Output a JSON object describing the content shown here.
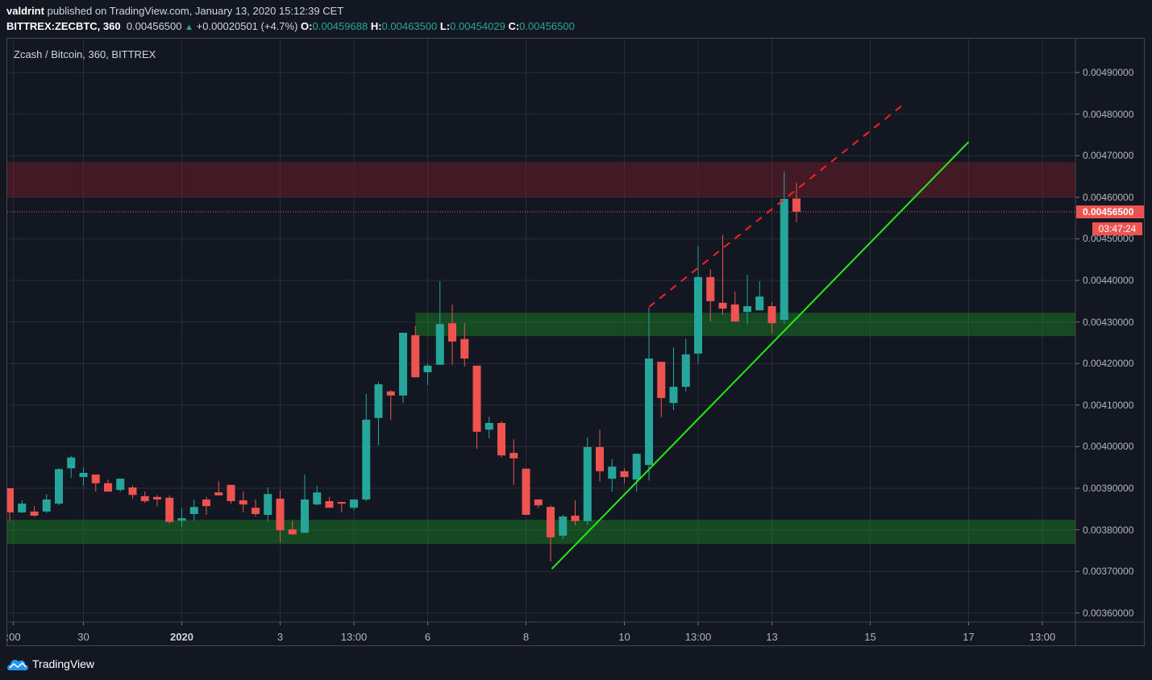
{
  "header": {
    "author": "valdrint",
    "published_text": "published on TradingView.com, January 13, 2020 15:12:39 CET",
    "symbol": "BITTREX:ZECBTC, 360",
    "last": "0.00456500",
    "change": "+0.00020501 (+4.7%)",
    "o_label": "O:",
    "o": "0.00459688",
    "h_label": "H:",
    "h": "0.00463500",
    "l_label": "L:",
    "l": "0.00454029",
    "c_label": "C:",
    "c": "0.00456500",
    "arrow_icon": "triangle-up-icon"
  },
  "legend": "Zcash / Bitcoin, 360, BITTREX",
  "price_tag": "0.00456500",
  "countdown": "03:47:24",
  "brand": "TradingView",
  "colors": {
    "up": "#26a69a",
    "down": "#ef5350",
    "background": "#131722",
    "grid": "#2a2e39",
    "resistance_zone": "#4a1c22",
    "support_zone": "#1e5a28",
    "trendline": "#22ee11",
    "dashed_line": "#ff2020"
  },
  "chart_data": {
    "type": "candlestick",
    "title": "Zcash / Bitcoin, 360, BITTREX",
    "ylim": [
      0.00355,
      0.00497
    ],
    "grid": true,
    "y_ticks": [
      "0.00490000",
      "0.00480000",
      "0.00470000",
      "0.00460000",
      "0.00450000",
      "0.00440000",
      "0.00430000",
      "0.00420000",
      "0.00410000",
      "0.00400000",
      "0.00390000",
      "0.00380000",
      "0.00370000",
      "0.00360000"
    ],
    "x_ticks": [
      {
        "label": ":00",
        "bar": 0.3
      },
      {
        "label": "30",
        "bar": 6
      },
      {
        "label": "2020",
        "bar": 14,
        "bold": true
      },
      {
        "label": "3",
        "bar": 22
      },
      {
        "label": "13:00",
        "bar": 28
      },
      {
        "label": "6",
        "bar": 34
      },
      {
        "label": "8",
        "bar": 42
      },
      {
        "label": "10",
        "bar": 50
      },
      {
        "label": "13:00",
        "bar": 56
      },
      {
        "label": "13",
        "bar": 62
      },
      {
        "label": "15",
        "bar": 70
      },
      {
        "label": "17",
        "bar": 78
      },
      {
        "label": "13:00",
        "bar": 84
      }
    ],
    "candles_ohlc": [
      [
        0.0039,
        0.0039,
        0.003822,
        0.003842
      ],
      [
        0.003842,
        0.003871,
        0.00384,
        0.003863
      ],
      [
        0.003844,
        0.003857,
        0.003832,
        0.003834
      ],
      [
        0.003844,
        0.003886,
        0.00384,
        0.003873
      ],
      [
        0.003863,
        0.003948,
        0.003859,
        0.003946
      ],
      [
        0.003948,
        0.003978,
        0.003925,
        0.003974
      ],
      [
        0.003927,
        0.00395,
        0.003906,
        0.003937
      ],
      [
        0.003933,
        0.003933,
        0.003892,
        0.003912
      ],
      [
        0.003912,
        0.003921,
        0.003892,
        0.003892
      ],
      [
        0.003896,
        0.003923,
        0.003892,
        0.003923
      ],
      [
        0.003902,
        0.003906,
        0.003875,
        0.003884
      ],
      [
        0.003881,
        0.003892,
        0.003865,
        0.003869
      ],
      [
        0.003879,
        0.003883,
        0.003857,
        0.003873
      ],
      [
        0.003877,
        0.003883,
        0.003815,
        0.003819
      ],
      [
        0.003822,
        0.003852,
        0.003807,
        0.003828
      ],
      [
        0.003838,
        0.003873,
        0.003822,
        0.003855
      ],
      [
        0.003873,
        0.003879,
        0.003836,
        0.003857
      ],
      [
        0.00389,
        0.003917,
        0.003883,
        0.003883
      ],
      [
        0.003908,
        0.003908,
        0.003863,
        0.003869
      ],
      [
        0.003871,
        0.003892,
        0.003842,
        0.003861
      ],
      [
        0.003853,
        0.003873,
        0.003832,
        0.003838
      ],
      [
        0.003836,
        0.003902,
        0.00382,
        0.003886
      ],
      [
        0.003875,
        0.003896,
        0.00377,
        0.003799
      ],
      [
        0.003801,
        0.003822,
        0.003789,
        0.003789
      ],
      [
        0.003793,
        0.003933,
        0.003793,
        0.003873
      ],
      [
        0.003861,
        0.003906,
        0.003859,
        0.00389
      ],
      [
        0.003869,
        0.003879,
        0.003853,
        0.003853
      ],
      [
        0.003867,
        0.003867,
        0.003842,
        0.003863
      ],
      [
        0.003853,
        0.003873,
        0.003846,
        0.003873
      ],
      [
        0.003873,
        0.004127,
        0.003869,
        0.004065
      ],
      [
        0.004069,
        0.004156,
        0.004003,
        0.00415
      ],
      [
        0.004133,
        0.004136,
        0.004065,
        0.004123
      ],
      [
        0.004123,
        0.004274,
        0.004105,
        0.004274
      ],
      [
        0.004268,
        0.00429,
        0.004166,
        0.004167
      ],
      [
        0.004179,
        0.0042,
        0.004148,
        0.004195
      ],
      [
        0.004197,
        0.004398,
        0.004197,
        0.004295
      ],
      [
        0.004297,
        0.004342,
        0.004197,
        0.004253
      ],
      [
        0.004259,
        0.004297,
        0.004193,
        0.004212
      ],
      [
        0.004195,
        0.004195,
        0.003995,
        0.004036
      ],
      [
        0.004041,
        0.004072,
        0.00402,
        0.004057
      ],
      [
        0.004057,
        0.004061,
        0.003974,
        0.003979
      ],
      [
        0.003985,
        0.004018,
        0.003908,
        0.003972
      ],
      [
        0.003947,
        0.003947,
        0.003836,
        0.003836
      ],
      [
        0.003873,
        0.003873,
        0.003853,
        0.003859
      ],
      [
        0.003855,
        0.003859,
        0.003724,
        0.003782
      ],
      [
        0.003786,
        0.003836,
        0.003778,
        0.003832
      ],
      [
        0.003834,
        0.003871,
        0.003811,
        0.003821
      ],
      [
        0.003821,
        0.004022,
        0.003811,
        0.003999
      ],
      [
        0.003999,
        0.004041,
        0.003916,
        0.003941
      ],
      [
        0.003923,
        0.00397,
        0.003892,
        0.003952
      ],
      [
        0.003941,
        0.003948,
        0.003912,
        0.003927
      ],
      [
        0.003921,
        0.003983,
        0.003892,
        0.003983
      ],
      [
        0.003956,
        0.004334,
        0.003919,
        0.004212
      ],
      [
        0.004204,
        0.004204,
        0.004071,
        0.004117
      ],
      [
        0.004105,
        0.004239,
        0.004088,
        0.004144
      ],
      [
        0.004144,
        0.00426,
        0.004133,
        0.004222
      ],
      [
        0.004224,
        0.004483,
        0.0042,
        0.004408
      ],
      [
        0.004408,
        0.004427,
        0.004301,
        0.00435
      ],
      [
        0.004346,
        0.004509,
        0.004317,
        0.004332
      ],
      [
        0.004342,
        0.004373,
        0.004301,
        0.004301
      ],
      [
        0.004324,
        0.004414,
        0.004295,
        0.004338
      ],
      [
        0.004328,
        0.004398,
        0.004328,
        0.004361
      ],
      [
        0.004338,
        0.004348,
        0.004272,
        0.004297
      ],
      [
        0.004305,
        0.004662,
        0.004295,
        0.004596
      ],
      [
        0.00459688,
        0.004635,
        0.00454029,
        0.004565
      ]
    ],
    "last_price": 0.004565,
    "annotations": {
      "resistance_zone": {
        "from": 0.0046,
        "to": 0.004685
      },
      "support_zone_upper": {
        "from": 0.004266,
        "to": 0.004322,
        "start_bar": 33.0
      },
      "support_zone_lower": {
        "from": 0.003766,
        "to": 0.003824
      },
      "ascending_trendline": [
        {
          "bar": 44.1,
          "price": 0.003706
        },
        {
          "bar": 78.0,
          "price": 0.004733
        }
      ],
      "dashed_channel_line": [
        {
          "bar": 52.0,
          "price": 0.004336
        },
        {
          "bar": 72.9,
          "price": 0.004828
        }
      ]
    }
  }
}
